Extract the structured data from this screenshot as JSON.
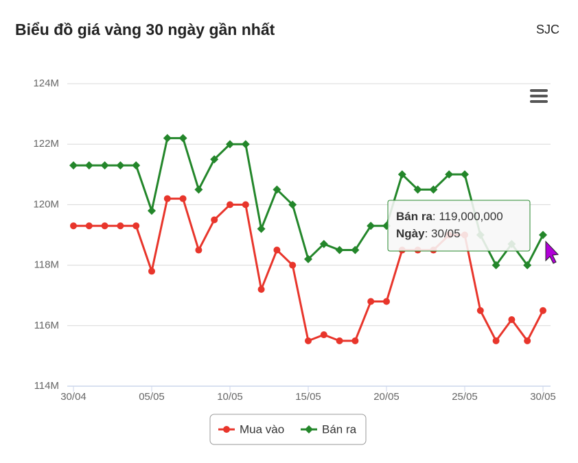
{
  "chart_data": {
    "type": "line",
    "title": "Biểu đồ giá vàng 30 ngày gần nhất",
    "subtitle": "SJC",
    "categories": [
      "30/04",
      null,
      null,
      null,
      null,
      "05/05",
      null,
      null,
      null,
      null,
      "10/05",
      null,
      null,
      null,
      null,
      "15/05",
      null,
      null,
      null,
      null,
      "20/05",
      null,
      null,
      null,
      null,
      "25/05",
      null,
      null,
      null,
      null,
      "30/05"
    ],
    "series": [
      {
        "name": "Mua vào",
        "color": "#e8352b",
        "marker": "circle",
        "values": [
          119.3,
          119.3,
          119.3,
          119.3,
          119.3,
          117.8,
          120.2,
          120.2,
          118.5,
          119.5,
          120.0,
          120.0,
          117.2,
          118.5,
          118.0,
          115.5,
          115.7,
          115.5,
          115.5,
          116.8,
          116.8,
          118.5,
          118.5,
          118.5,
          119.0,
          119.0,
          116.5,
          115.5,
          116.2,
          115.5,
          116.5
        ]
      },
      {
        "name": "Bán ra",
        "color": "#23862a",
        "marker": "diamond",
        "values": [
          121.3,
          121.3,
          121.3,
          121.3,
          121.3,
          119.8,
          122.2,
          122.2,
          120.5,
          121.5,
          122.0,
          122.0,
          119.2,
          120.5,
          120.0,
          118.2,
          118.7,
          118.5,
          118.5,
          119.3,
          119.3,
          121.0,
          120.5,
          120.5,
          121.0,
          121.0,
          119.0,
          118.0,
          118.7,
          118.0,
          119.0
        ]
      }
    ],
    "ylim": [
      114,
      124
    ],
    "yticks": [
      {
        "value": 114,
        "label": "114M"
      },
      {
        "value": 116,
        "label": "116M"
      },
      {
        "value": 118,
        "label": "118M"
      },
      {
        "value": 120,
        "label": "120M"
      },
      {
        "value": 122,
        "label": "122M"
      },
      {
        "value": 124,
        "label": "124M"
      }
    ],
    "grid": true,
    "legend": "bottom",
    "tooltip": {
      "lines": [
        {
          "key": "Bán ra",
          "text": ": 119,000,000"
        },
        {
          "key": "Ngày",
          "text": ": 30/05"
        }
      ]
    }
  }
}
